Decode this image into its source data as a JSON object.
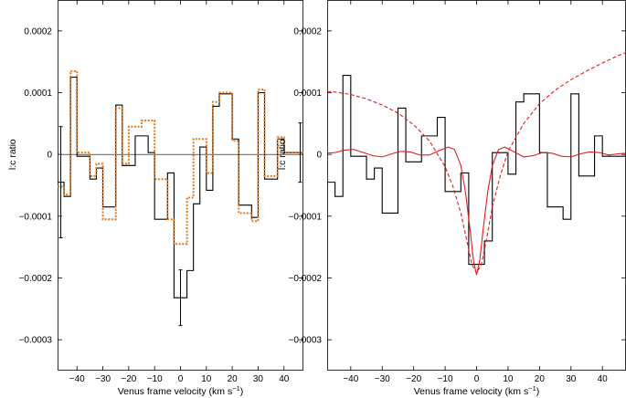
{
  "chart_data": [
    {
      "type": "line",
      "panel": "left",
      "title": "",
      "xlabel": "Venus frame velocity (km s",
      "xlabel_sup": "−1",
      "xlabel_close": ")",
      "ylabel": "l:c ratio",
      "xlim": [
        -47.5,
        47.5
      ],
      "ylim": [
        -0.00035,
        0.00025
      ],
      "xticks": [
        -40,
        -30,
        -20,
        -10,
        0,
        10,
        20,
        30,
        40
      ],
      "xtick_labels": [
        "−40",
        "−30",
        "−20",
        "−10",
        "0",
        "10",
        "20",
        "30",
        "40"
      ],
      "yticks": [
        -0.0003,
        -0.0002,
        -0.0001,
        0,
        0.0001,
        0.0002
      ],
      "ytick_labels": [
        "−0.0003",
        "−0.0002",
        "−0.0001",
        "0",
        "0.0001",
        "0.0002"
      ],
      "zero_line": true,
      "series": [
        {
          "style": "step-solid",
          "color": "#000000",
          "x": [
            -46.25,
            -43.75,
            -41.25,
            -38.75,
            -36.25,
            -33.75,
            -31.25,
            -28.75,
            -26.25,
            -23.75,
            -21.25,
            -18.75,
            -16.25,
            -13.75,
            -11.25,
            -8.75,
            -6.25,
            -3.75,
            -1.25,
            1.25,
            3.75,
            6.25,
            8.75,
            11.25,
            13.75,
            16.25,
            18.75,
            21.25,
            23.75,
            26.25,
            28.75,
            31.25,
            33.75,
            36.25,
            38.75,
            41.25,
            43.75,
            46.25
          ],
          "y": [
            -4.5e-05,
            -6.8e-05,
            0.000125,
            -3e-06,
            -3e-06,
            -4e-05,
            -2.2e-05,
            -8.5e-05,
            -8.5e-05,
            8e-05,
            -1.8e-05,
            -1.8e-05,
            3e-05,
            3e-05,
            3e-06,
            -0.000105,
            -0.000105,
            -3e-05,
            -0.000232,
            -0.000232,
            -0.000188,
            -8e-05,
            1.2e-05,
            -5.8e-05,
            7.8e-05,
            9.8e-05,
            9.8e-05,
            2.5e-05,
            -8.2e-05,
            -8.2e-05,
            -0.000102,
            0.0001,
            -4e-05,
            -4e-05,
            2.5e-05,
            3e-06,
            3e-06,
            3e-06
          ]
        },
        {
          "style": "step-dotted",
          "color": "#e07b1e",
          "x": [
            -46.25,
            -43.75,
            -41.25,
            -38.75,
            -36.25,
            -33.75,
            -31.25,
            -28.75,
            -26.25,
            -23.75,
            -21.25,
            -18.75,
            -16.25,
            -13.75,
            -11.25,
            -8.75,
            -6.25,
            -3.75,
            -1.25,
            1.25,
            3.75,
            6.25,
            8.75,
            11.25,
            13.75,
            16.25,
            18.75,
            21.25,
            23.75,
            26.25,
            28.75,
            31.25,
            33.75,
            36.25,
            38.75,
            41.25,
            43.75,
            46.25
          ],
          "y": [
            -5.2e-05,
            -6.5e-05,
            0.000135,
            3e-06,
            3e-06,
            -3.5e-05,
            -1.5e-05,
            -0.000105,
            -0.000105,
            7.5e-05,
            -1.5e-05,
            4.5e-05,
            4.5e-05,
            5.5e-05,
            5.5e-05,
            -4e-05,
            -4e-05,
            -0.000105,
            -0.000145,
            -0.000145,
            -7e-05,
            2.5e-05,
            2.5e-05,
            -3e-05,
            8.5e-05,
            0.0001,
            0.0001,
            2.2e-05,
            -9.5e-05,
            -9.5e-05,
            -0.000108,
            0.000105,
            -3.5e-05,
            -3.5e-05,
            2.8e-05,
            3e-06,
            3e-06,
            3e-06
          ]
        }
      ],
      "error_bars": [
        {
          "x": -46.25,
          "y": -4.5e-05,
          "err": 9e-05
        },
        {
          "x": 0,
          "y": -0.000232,
          "err": 4.5e-05
        },
        {
          "x": 46.25,
          "y": 3e-06,
          "err": 4.8e-05
        }
      ]
    },
    {
      "type": "line",
      "panel": "right",
      "title": "",
      "xlabel": "Venus frame velocity (km s",
      "xlabel_sup": "−1",
      "xlabel_close": ")",
      "ylabel": "l:c ratio",
      "xlim": [
        -47.5,
        47.5
      ],
      "ylim": [
        -0.00035,
        0.00025
      ],
      "xticks": [
        -40,
        -30,
        -20,
        -10,
        0,
        10,
        20,
        30,
        40
      ],
      "xtick_labels": [
        "−40",
        "−30",
        "−20",
        "−10",
        "0",
        "10",
        "20",
        "30",
        "40"
      ],
      "yticks": [
        -0.0003,
        -0.0002,
        -0.0001,
        0,
        0.0001,
        0.0002
      ],
      "ytick_labels": [
        "−0.0003",
        "−0.0002",
        "−0.0001",
        "0",
        "0.0001",
        "0.0002"
      ],
      "zero_line": false,
      "series": [
        {
          "style": "step-solid",
          "color": "#000000",
          "x": [
            -46.25,
            -43.75,
            -41.25,
            -38.75,
            -36.25,
            -33.75,
            -31.25,
            -28.75,
            -26.25,
            -23.75,
            -21.25,
            -18.75,
            -16.25,
            -13.75,
            -11.25,
            -8.75,
            -6.25,
            -3.75,
            -1.25,
            1.25,
            3.75,
            6.25,
            8.75,
            11.25,
            13.75,
            16.25,
            18.75,
            21.25,
            23.75,
            26.25,
            28.75,
            31.25,
            33.75,
            36.25,
            38.75,
            41.25,
            43.75,
            46.25
          ],
          "y": [
            -4.5e-05,
            -6.8e-05,
            0.000128,
            -3e-06,
            -3e-06,
            -4e-05,
            -2.2e-05,
            -9.5e-05,
            -9.5e-05,
            7.5e-05,
            -1.2e-05,
            -1.2e-05,
            3e-05,
            3e-05,
            6e-05,
            -6e-05,
            -6e-05,
            -3e-05,
            -0.000178,
            -0.000178,
            -0.00014,
            3e-06,
            3e-06,
            -3.2e-05,
            8.5e-05,
            9.8e-05,
            9.8e-05,
            3e-06,
            -8.5e-05,
            -8.5e-05,
            -0.000105,
            9.8e-05,
            -3.5e-05,
            -3.5e-05,
            3e-05,
            -3e-06,
            -3e-06,
            -3e-06
          ]
        },
        {
          "style": "curve-dashed",
          "color": "#e31a1c",
          "x": [
            -47.5,
            -45,
            -40,
            -35,
            -30,
            -25,
            -20,
            -15,
            -10,
            -7.5,
            -5,
            -3,
            -1.5,
            0,
            1.5,
            3,
            5,
            7.5,
            10,
            15,
            20,
            25,
            30,
            35,
            40,
            45,
            47.5
          ],
          "y": [
            0.000102,
            0.000101,
            9.7e-05,
            9e-05,
            8e-05,
            6.7e-05,
            4.8e-05,
            2.2e-05,
            -2e-05,
            -5.2e-05,
            -9.5e-05,
            -0.000142,
            -0.000178,
            -0.000192,
            -0.000178,
            -0.000142,
            -8.5e-05,
            -3.5e-05,
            5e-06,
            5e-05,
            8.2e-05,
            0.000104,
            0.000121,
            0.000135,
            0.000148,
            0.00016,
            0.000165
          ]
        },
        {
          "style": "curve-solid",
          "color": "#e31a1c",
          "x": [
            -47.5,
            -45,
            -42,
            -39,
            -36,
            -33,
            -30,
            -27,
            -24,
            -21,
            -18,
            -15,
            -12,
            -9,
            -7,
            -5,
            -3.5,
            -2,
            -1,
            0,
            1,
            2,
            3.5,
            5,
            7,
            9,
            12,
            15,
            18,
            21,
            24,
            27,
            30,
            33,
            36,
            39,
            42,
            45,
            47.5
          ],
          "y": [
            2e-06,
            3e-06,
            7e-06,
            8e-06,
            3e-06,
            -2e-06,
            -4e-06,
            1e-06,
            5e-06,
            4e-06,
            -1e-06,
            -1e-06,
            6e-06,
            1.2e-05,
            8e-06,
            -1.8e-05,
            -6.2e-05,
            -0.000125,
            -0.000172,
            -0.000195,
            -0.000172,
            -0.000125,
            -6.2e-05,
            -1.8e-05,
            8e-06,
            1.2e-05,
            4e-06,
            -4e-06,
            -2e-06,
            3e-06,
            2e-06,
            -3e-06,
            -4e-06,
            1e-06,
            4e-06,
            3e-06,
            -1e-06,
            1e-06,
            2e-06
          ]
        }
      ],
      "error_bars": []
    }
  ]
}
